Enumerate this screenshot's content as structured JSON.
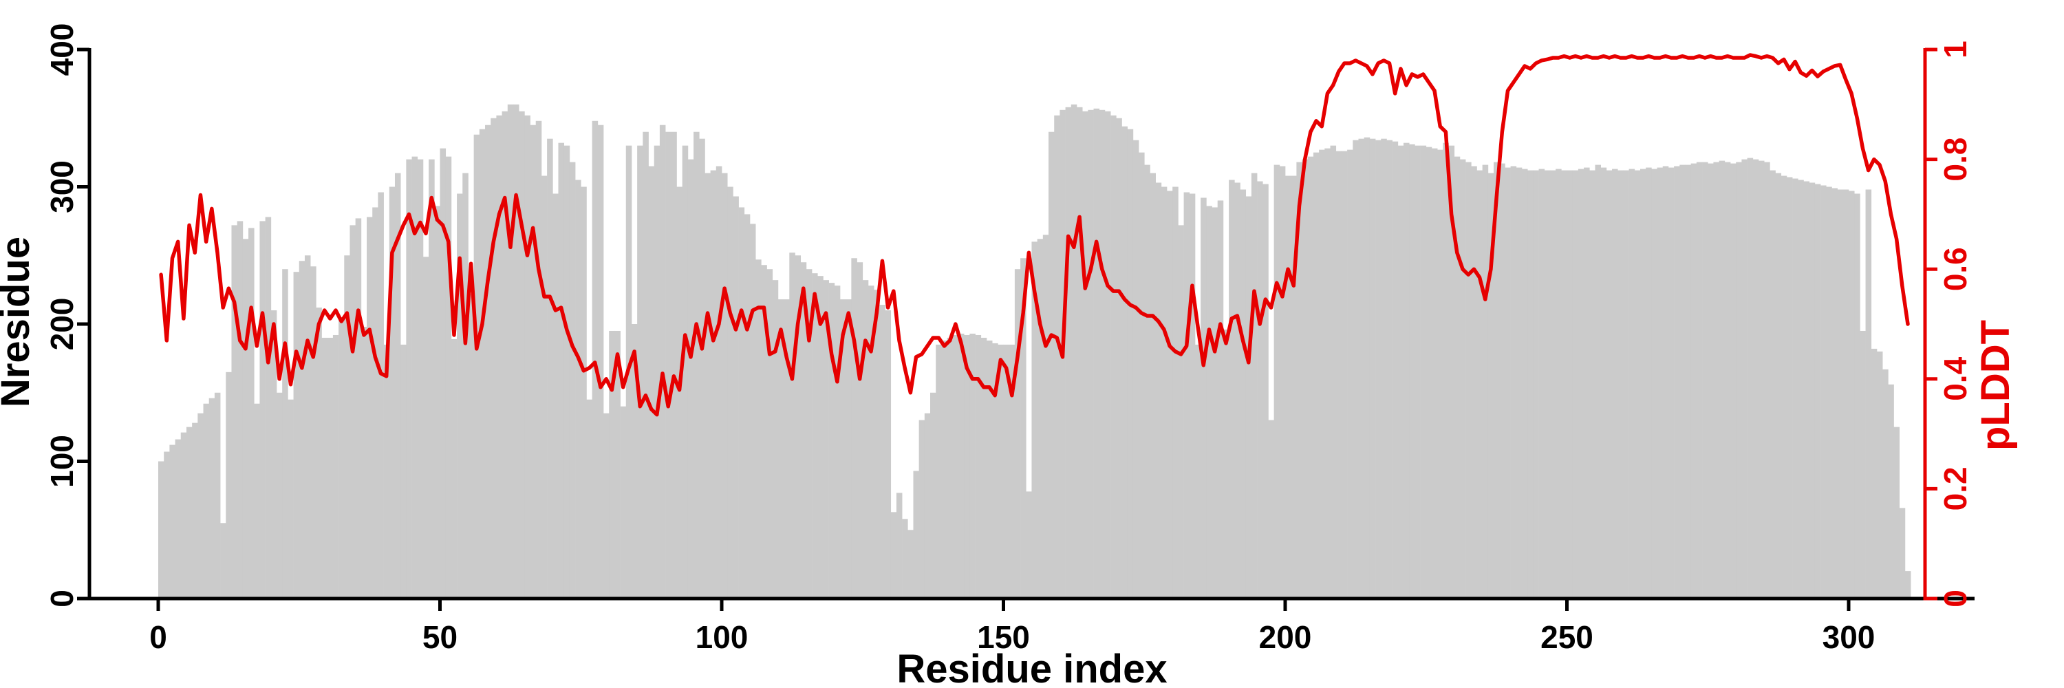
{
  "figure": {
    "background": "#ffffff",
    "bar_color": "#cbcbcb",
    "line_color": "#e60000",
    "axis_color": "#000000",
    "right_axis_color": "#e60000"
  },
  "chart_data": {
    "type": "bar+line",
    "title": "",
    "xlabel": "Residue index",
    "ylabel_left": "Nresidue",
    "ylabel_right": "pLDDT",
    "xlim": [
      0,
      315
    ],
    "ylim_left": [
      0,
      400
    ],
    "ylim_right": [
      0,
      1
    ],
    "grid": false,
    "legend": "none",
    "xticks": [
      0,
      50,
      100,
      150,
      200,
      250,
      300
    ],
    "xtick_labels": [
      "0",
      "50",
      "100",
      "150",
      "200",
      "250",
      "300"
    ],
    "yticks_left": [
      0,
      100,
      200,
      300,
      400
    ],
    "ytick_labels_left": [
      "0",
      "100",
      "200",
      "300",
      "400"
    ],
    "yticks_right": [
      0,
      0.2,
      0.4,
      0.6,
      0.8,
      1
    ],
    "ytick_labels_right": [
      "0",
      "0.2",
      "0.4",
      "0.6",
      "0.8",
      "1"
    ],
    "x_start": 0,
    "x_step": 1,
    "series": [
      {
        "name": "Nresidue",
        "type": "bar",
        "axis": "left",
        "color": "#cbcbcb",
        "values": [
          100,
          107,
          112,
          116,
          121,
          125,
          128,
          135,
          142,
          146,
          150,
          55,
          165,
          272,
          275,
          262,
          270,
          142,
          275,
          278,
          210,
          150,
          240,
          145,
          238,
          246,
          250,
          242,
          212,
          190,
          190,
          192,
          205,
          250,
          272,
          277,
          198,
          278,
          285,
          296,
          185,
          300,
          310,
          185,
          320,
          322,
          320,
          249,
          320,
          286,
          328,
          322,
          189,
          295,
          310,
          222,
          338,
          342,
          345,
          350,
          352,
          355,
          360,
          360,
          355,
          352,
          345,
          348,
          308,
          335,
          295,
          332,
          330,
          318,
          305,
          300,
          145,
          348,
          345,
          135,
          195,
          195,
          140,
          330,
          200,
          330,
          340,
          315,
          330,
          345,
          340,
          340,
          300,
          330,
          320,
          340,
          335,
          310,
          312,
          315,
          310,
          300,
          293,
          285,
          280,
          273,
          247,
          243,
          240,
          232,
          218,
          218,
          252,
          250,
          245,
          240,
          237,
          235,
          232,
          230,
          228,
          218,
          218,
          248,
          245,
          232,
          228,
          225,
          214,
          210,
          63,
          77,
          58,
          50,
          93,
          130,
          135,
          150,
          185,
          188,
          190,
          192,
          193,
          192,
          193,
          192,
          190,
          188,
          186,
          185,
          185,
          185,
          240,
          248,
          78,
          260,
          262,
          265,
          340,
          352,
          356,
          358,
          360,
          358,
          355,
          356,
          357,
          356,
          355,
          352,
          350,
          344,
          342,
          334,
          325,
          316,
          310,
          303,
          300,
          297,
          300,
          272,
          296,
          295,
          185,
          292,
          286,
          285,
          290,
          196,
          305,
          303,
          298,
          293,
          310,
          304,
          302,
          130,
          316,
          315,
          308,
          308,
          318,
          320,
          322,
          325,
          327,
          328,
          330,
          326,
          326,
          327,
          334,
          335,
          336,
          335,
          334,
          335,
          334,
          333,
          330,
          332,
          331,
          330,
          330,
          329,
          328,
          327,
          332,
          330,
          322,
          320,
          318,
          315,
          312,
          316,
          310,
          318,
          317,
          314,
          315,
          314,
          313,
          312,
          312,
          313,
          312,
          312,
          313,
          312,
          312,
          312,
          313,
          314,
          312,
          316,
          314,
          312,
          313,
          312,
          312,
          313,
          312,
          313,
          314,
          313,
          314,
          315,
          314,
          315,
          316,
          316,
          317,
          318,
          318,
          317,
          318,
          319,
          318,
          317,
          318,
          320,
          321,
          320,
          319,
          318,
          312,
          310,
          308,
          307,
          306,
          305,
          304,
          303,
          302,
          301,
          300,
          299,
          298,
          298,
          297,
          295,
          195,
          298,
          182,
          180,
          167,
          156,
          125,
          66,
          20
        ]
      },
      {
        "name": "pLDDT",
        "type": "line",
        "axis": "right",
        "color": "#e60000",
        "values": [
          0.59,
          0.47,
          0.62,
          0.65,
          0.51,
          0.68,
          0.63,
          0.735,
          0.65,
          0.71,
          0.63,
          0.53,
          0.565,
          0.54,
          0.47,
          0.455,
          0.53,
          0.46,
          0.52,
          0.43,
          0.5,
          0.4,
          0.465,
          0.39,
          0.45,
          0.42,
          0.47,
          0.44,
          0.5,
          0.525,
          0.51,
          0.525,
          0.505,
          0.52,
          0.45,
          0.525,
          0.48,
          0.49,
          0.44,
          0.41,
          0.405,
          0.63,
          0.655,
          0.68,
          0.7,
          0.665,
          0.685,
          0.665,
          0.73,
          0.69,
          0.68,
          0.65,
          0.48,
          0.62,
          0.465,
          0.61,
          0.455,
          0.5,
          0.58,
          0.65,
          0.7,
          0.73,
          0.64,
          0.735,
          0.68,
          0.625,
          0.675,
          0.6,
          0.55,
          0.55,
          0.525,
          0.53,
          0.49,
          0.46,
          0.44,
          0.415,
          0.42,
          0.43,
          0.385,
          0.4,
          0.38,
          0.445,
          0.385,
          0.42,
          0.45,
          0.35,
          0.37,
          0.345,
          0.335,
          0.41,
          0.35,
          0.405,
          0.38,
          0.48,
          0.44,
          0.5,
          0.455,
          0.52,
          0.47,
          0.5,
          0.565,
          0.52,
          0.49,
          0.525,
          0.49,
          0.525,
          0.53,
          0.53,
          0.445,
          0.45,
          0.49,
          0.44,
          0.4,
          0.5,
          0.565,
          0.47,
          0.555,
          0.5,
          0.52,
          0.445,
          0.395,
          0.48,
          0.52,
          0.47,
          0.4,
          0.47,
          0.45,
          0.52,
          0.615,
          0.53,
          0.56,
          0.47,
          0.42,
          0.375,
          0.44,
          0.445,
          0.46,
          0.475,
          0.475,
          0.46,
          0.47,
          0.5,
          0.465,
          0.42,
          0.4,
          0.4,
          0.385,
          0.385,
          0.37,
          0.435,
          0.42,
          0.37,
          0.44,
          0.52,
          0.63,
          0.56,
          0.5,
          0.46,
          0.48,
          0.475,
          0.44,
          0.66,
          0.64,
          0.695,
          0.565,
          0.6,
          0.65,
          0.6,
          0.57,
          0.56,
          0.56,
          0.545,
          0.535,
          0.53,
          0.52,
          0.515,
          0.515,
          0.505,
          0.49,
          0.46,
          0.45,
          0.445,
          0.46,
          0.57,
          0.495,
          0.425,
          0.49,
          0.45,
          0.5,
          0.465,
          0.51,
          0.515,
          0.47,
          0.43,
          0.56,
          0.5,
          0.545,
          0.53,
          0.575,
          0.55,
          0.6,
          0.57,
          0.715,
          0.8,
          0.85,
          0.87,
          0.86,
          0.92,
          0.935,
          0.96,
          0.975,
          0.975,
          0.98,
          0.975,
          0.97,
          0.955,
          0.975,
          0.98,
          0.975,
          0.92,
          0.965,
          0.935,
          0.955,
          0.95,
          0.955,
          0.94,
          0.925,
          0.86,
          0.85,
          0.7,
          0.63,
          0.6,
          0.59,
          0.6,
          0.585,
          0.545,
          0.6,
          0.73,
          0.85,
          0.925,
          0.94,
          0.955,
          0.97,
          0.965,
          0.975,
          0.98,
          0.982,
          0.985,
          0.985,
          0.988,
          0.985,
          0.988,
          0.985,
          0.988,
          0.985,
          0.985,
          0.988,
          0.985,
          0.988,
          0.985,
          0.985,
          0.988,
          0.985,
          0.985,
          0.988,
          0.985,
          0.985,
          0.988,
          0.985,
          0.985,
          0.988,
          0.985,
          0.985,
          0.988,
          0.985,
          0.988,
          0.985,
          0.985,
          0.988,
          0.985,
          0.985,
          0.985,
          0.99,
          0.988,
          0.985,
          0.988,
          0.985,
          0.975,
          0.982,
          0.964,
          0.978,
          0.958,
          0.952,
          0.962,
          0.951,
          0.96,
          0.965,
          0.97,
          0.972,
          0.945,
          0.92,
          0.875,
          0.82,
          0.78,
          0.8,
          0.79,
          0.76,
          0.7,
          0.655,
          0.57,
          0.5
        ]
      }
    ]
  }
}
